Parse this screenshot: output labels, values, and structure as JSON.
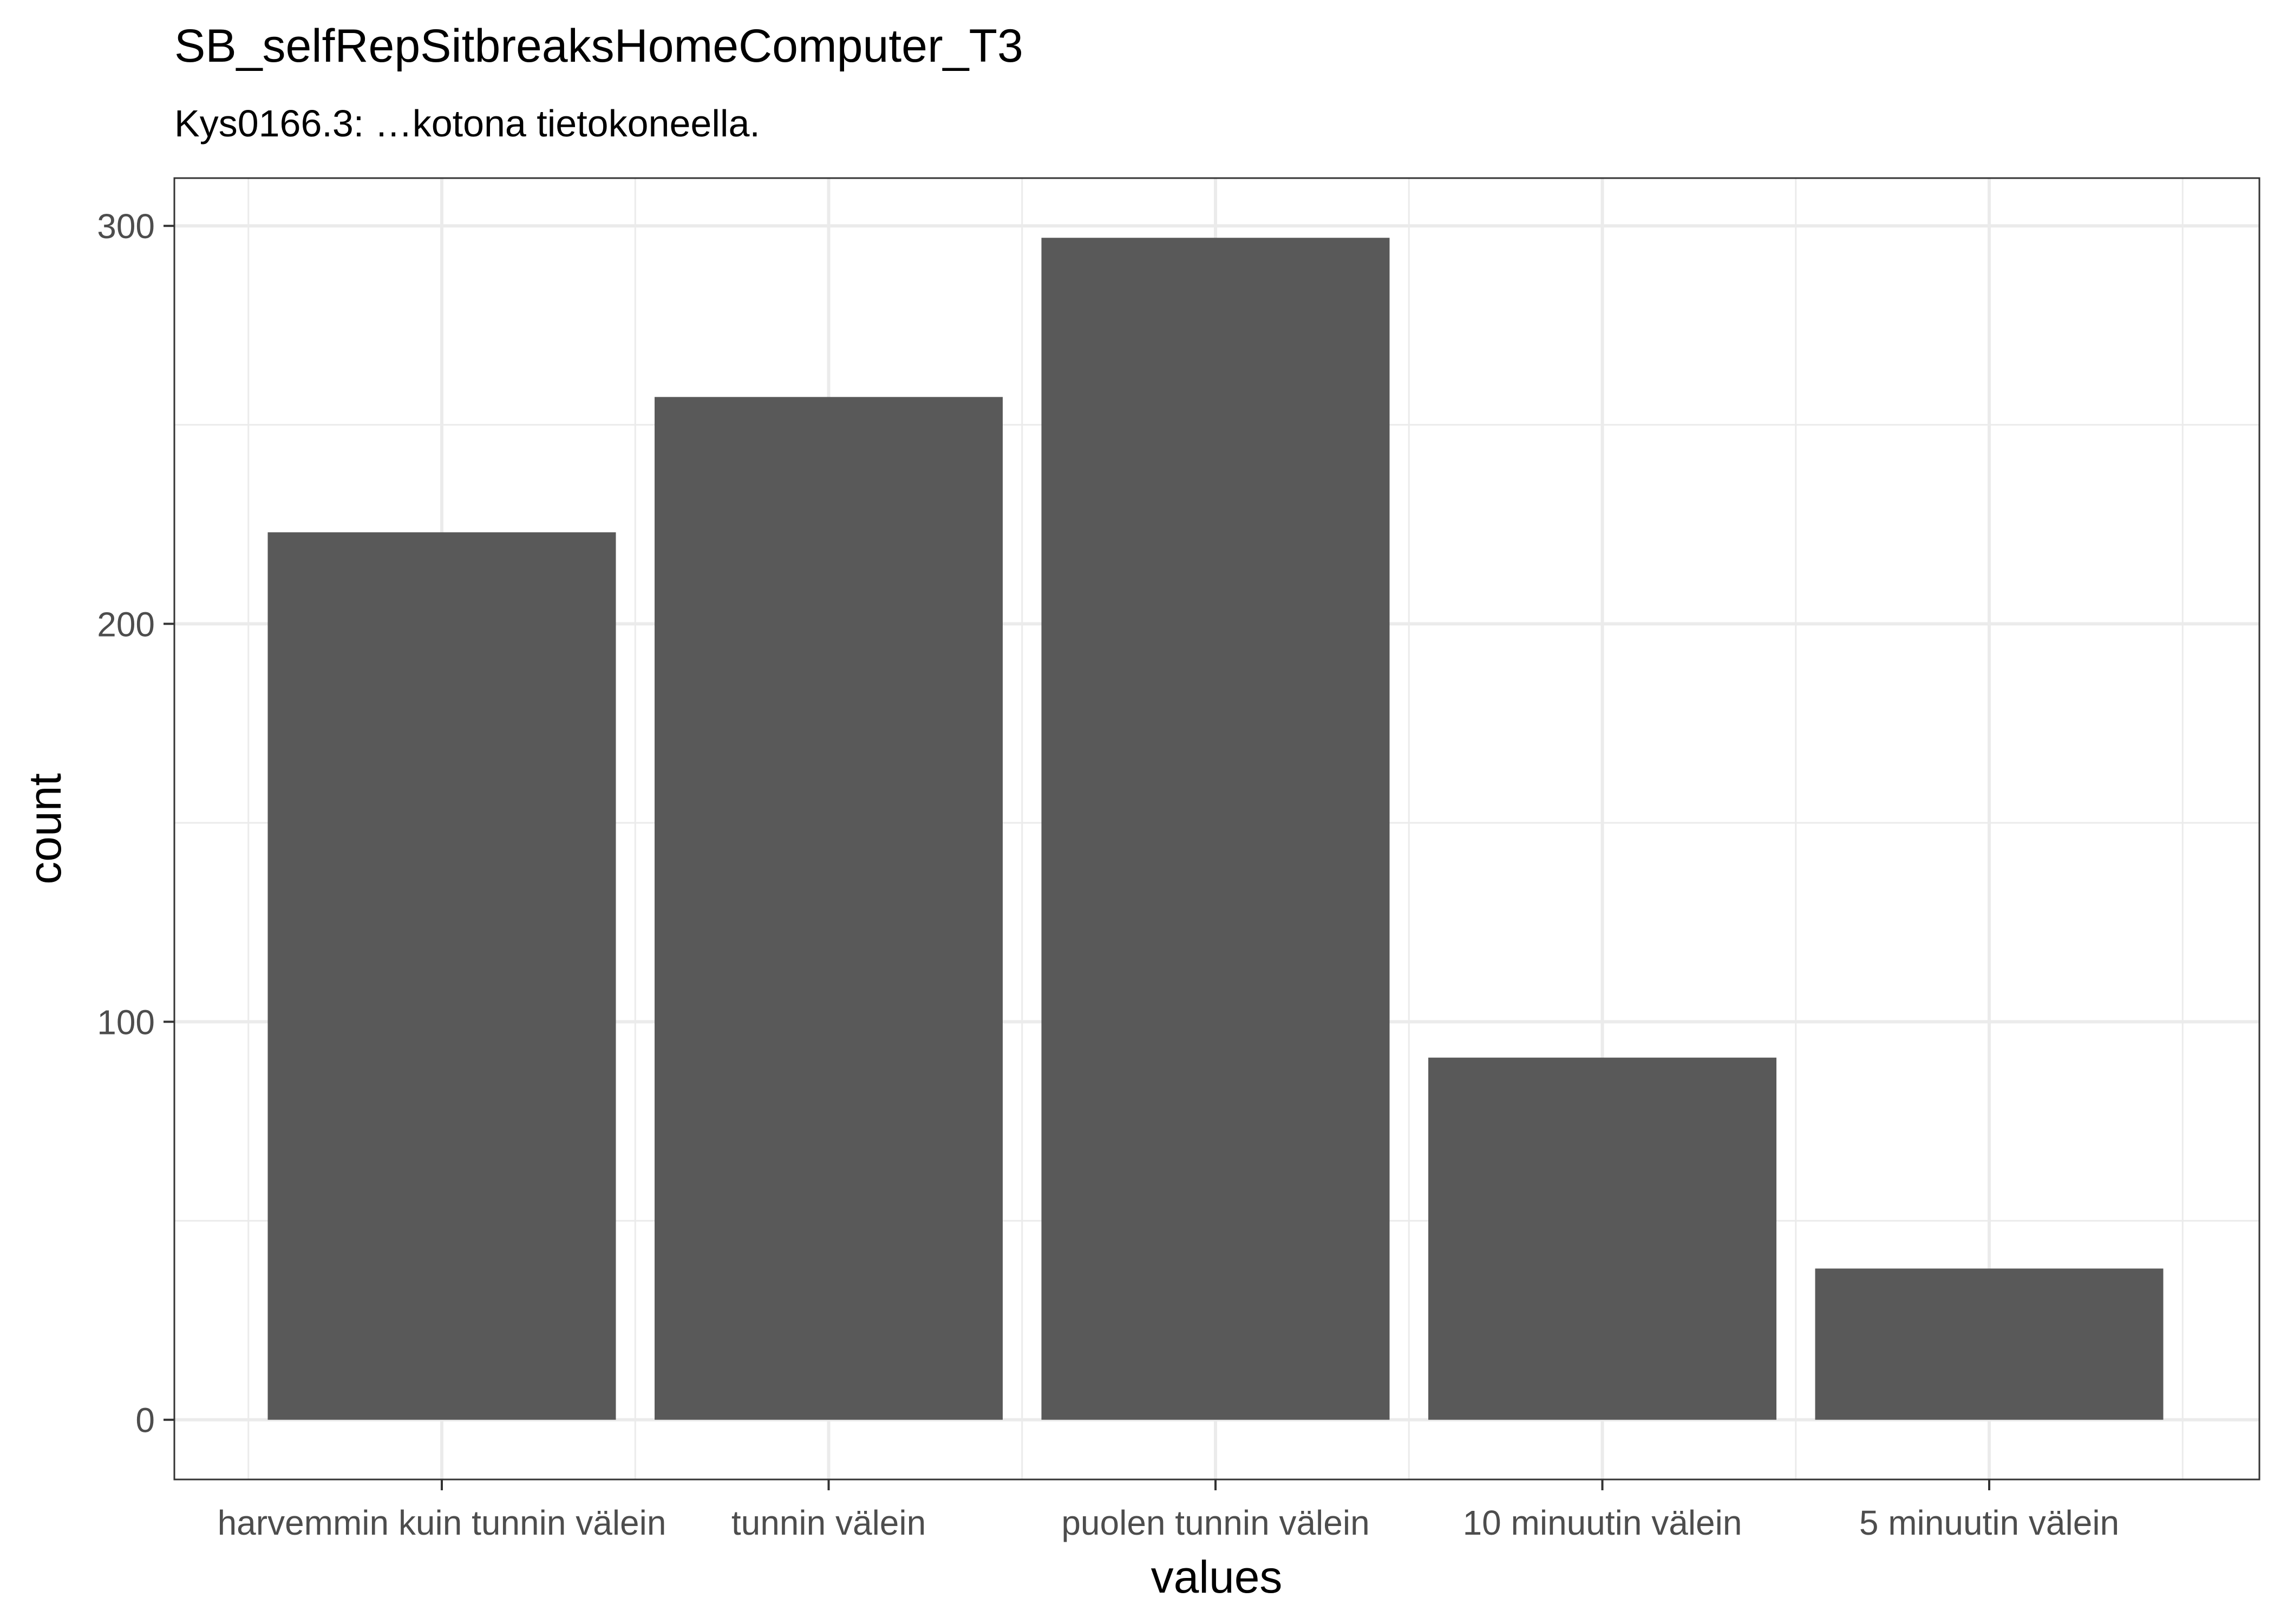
{
  "chart_data": {
    "type": "bar",
    "title": "SB_selfRepSitbreaksHomeComputer_T3",
    "subtitle": "Kys0166.3: …kotona tietokoneella.",
    "xlabel": "values",
    "ylabel": "count",
    "categories": [
      "harvemmin kuin tunnin välein",
      "tunnin välein",
      "puolen tunnin välein",
      "10 minuutin välein",
      "5 minuutin välein"
    ],
    "values": [
      223,
      257,
      297,
      91,
      38
    ],
    "ylim": [
      -15,
      312
    ],
    "yticks": [
      0,
      100,
      200,
      300
    ],
    "ytick_labels": [
      "0",
      "100",
      "200",
      "300"
    ],
    "grid": true,
    "bar_color": "#595959",
    "grid_color": "#ebebeb",
    "panel_border_color": "#333333"
  }
}
